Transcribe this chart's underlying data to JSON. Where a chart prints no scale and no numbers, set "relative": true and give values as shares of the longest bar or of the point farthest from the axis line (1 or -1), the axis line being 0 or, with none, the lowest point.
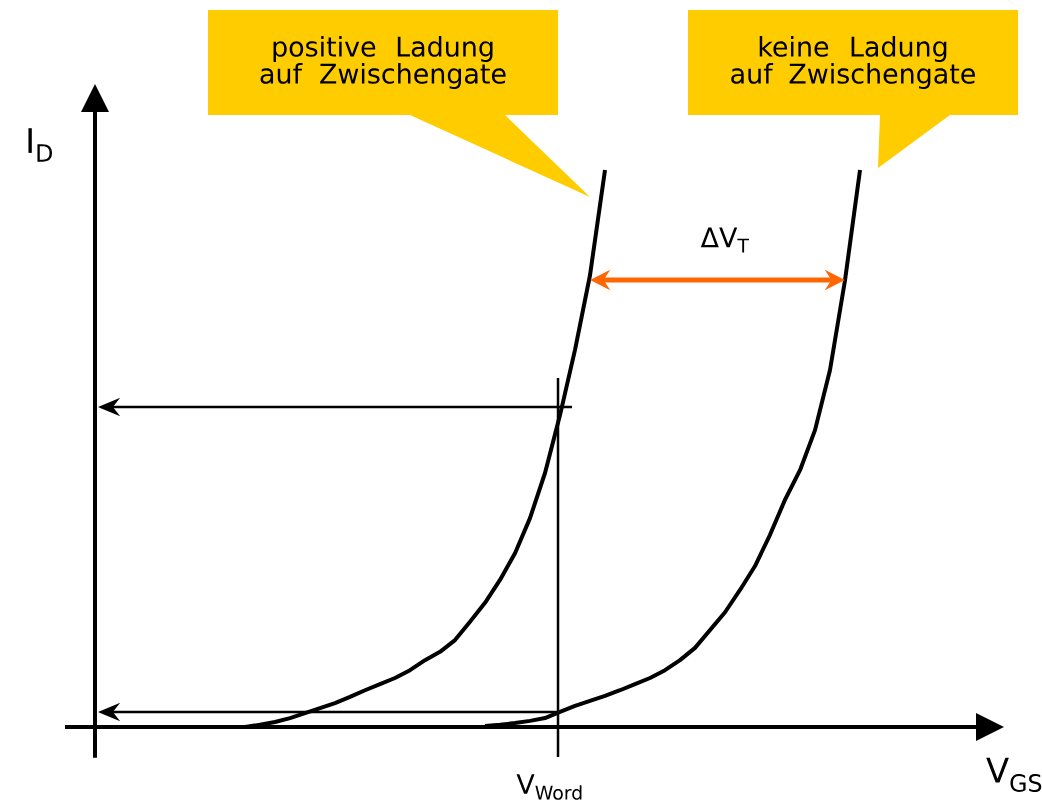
{
  "chart_data": {
    "type": "line",
    "relative": true,
    "xlabel": "V$_{GS}$",
    "ylabel": "I$_{D}$",
    "categories": [
      null,
      null,
      null,
      null,
      null,
      null,
      null,
      null,
      null,
      null,
      null,
      null,
      null,
      null,
      null,
      null,
      null,
      null,
      null,
      null,
      null,
      null,
      null,
      null,
      null,
      null,
      null,
      null,
      null,
      null,
      null,
      null,
      null,
      null,
      null,
      null,
      null,
      null,
      null,
      null,
      null,
      null,
      null,
      null,
      null,
      null,
      null,
      null,
      null,
      null,
      null,
      null,
      null,
      null,
      null,
      null,
      null,
      null,
      null,
      null
    ],
    "series": [
      {
        "color": "#000000",
        "values": [
          null,
          null,
          null,
          null,
          null,
          null,
          null,
          null,
          null,
          null,
          0,
          0.004,
          0.009,
          0.016,
          0.025,
          0.034,
          0.043,
          0.054,
          0.066,
          0.077,
          0.088,
          0.102,
          0.12,
          0.135,
          0.156,
          0.189,
          0.223,
          0.264,
          0.312,
          0.375,
          0.456,
          0.56,
          0.677,
          0.811,
          1.0,
          null,
          null,
          null,
          null,
          null,
          null,
          null,
          null,
          null,
          null,
          null,
          null,
          null,
          null,
          null,
          null,
          null,
          null,
          null,
          null,
          null,
          null,
          null,
          null,
          null
        ]
      },
      {
        "color": "#000000",
        "values": [
          null,
          null,
          null,
          null,
          null,
          null,
          null,
          null,
          null,
          null,
          null,
          null,
          null,
          null,
          null,
          null,
          null,
          null,
          null,
          null,
          null,
          null,
          null,
          null,
          null,
          null,
          0.002,
          0.004,
          0.007,
          0.011,
          0.016,
          0.027,
          0.038,
          0.047,
          0.056,
          0.066,
          0.077,
          0.088,
          0.102,
          0.12,
          0.142,
          0.174,
          0.206,
          0.246,
          0.289,
          0.345,
          0.408,
          0.461,
          0.533,
          0.641,
          0.802,
          1.0,
          null,
          null,
          null,
          null,
          null,
          null,
          null,
          null
        ]
      }
    ],
    "annotations": [
      "positive Ladung auf Zwischengate",
      "keine Ladung auf Zwischengate",
      "ΔV$_{T}$",
      "V$_{Word}$"
    ]
  }
}
